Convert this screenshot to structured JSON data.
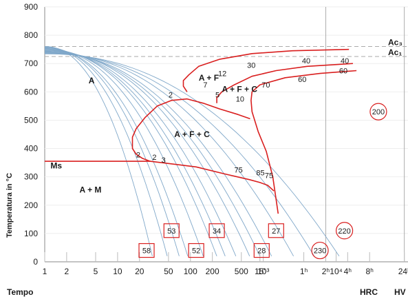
{
  "chart_data": {
    "type": "line",
    "title": "",
    "xlabel": "Tempo",
    "ylabel": "Temperatura in °C",
    "x_scale": "log",
    "ylim": [
      0,
      900
    ],
    "y_ticks": [
      "900",
      "800",
      "700",
      "600",
      "500",
      "400",
      "300",
      "200",
      "100",
      "0"
    ],
    "x_ticks": [
      {
        "label": "1",
        "sec": 1
      },
      {
        "label": "2",
        "sec": 2
      },
      {
        "label": "5",
        "sec": 5
      },
      {
        "label": "10",
        "sec": 10
      },
      {
        "label": "20",
        "sec": 20
      },
      {
        "label": "50",
        "sec": 50
      },
      {
        "label": "100",
        "sec": 100
      },
      {
        "label": "200",
        "sec": 200
      },
      {
        "label": "500",
        "sec": 500
      },
      {
        "label": "15'",
        "sec": 900
      },
      {
        "label": "10³",
        "sec": 1000
      },
      {
        "label": "1ʰ",
        "sec": 3600
      },
      {
        "label": "2ʰ",
        "sec": 7200
      },
      {
        "label": "10⁴",
        "sec": 10000
      },
      {
        "label": "4ʰ",
        "sec": 14400
      },
      {
        "label": "8ʰ",
        "sec": 28800
      },
      {
        "label": "24ʰ",
        "sec": 86400
      }
    ],
    "extra_labels": {
      "hrc": "HRC",
      "hv": "HV"
    },
    "critical_lines": [
      {
        "label": "Ac₃",
        "temp": 760
      },
      {
        "label": "Ac₁",
        "temp": 725
      }
    ],
    "phase_labels": [
      "A",
      "A + F",
      "A + F + C",
      "A + F + C",
      "A + M",
      "Ms"
    ],
    "transformation_numbers": [
      "2",
      "2",
      "2",
      "3",
      "5",
      "7",
      "10",
      "12",
      "30",
      "40",
      "40",
      "60",
      "60",
      "70",
      "75",
      "75",
      "85"
    ],
    "hardness_hrc": [
      "53",
      "34",
      "27",
      "58",
      "52",
      "28"
    ],
    "hardness_hv": [
      "200",
      "220",
      "230"
    ],
    "ms_temp": 355,
    "cooling_curves_count": 14
  }
}
